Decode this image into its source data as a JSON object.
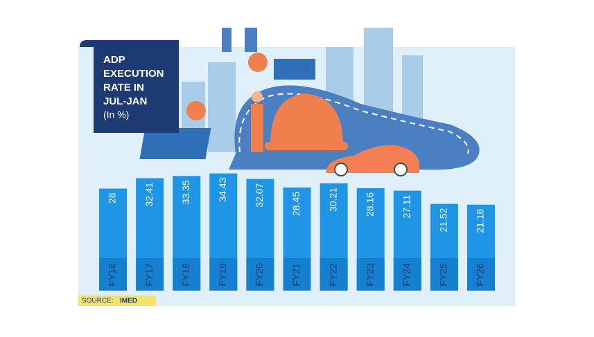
{
  "chart_data": {
    "type": "bar",
    "title_lines": [
      "ADP",
      "EXECUTION",
      "RATE IN",
      "JUL-JAN"
    ],
    "subtitle": "(In %)",
    "categories": [
      "FY16",
      "FY17",
      "FY18",
      "FY19",
      "FY20",
      "FY21",
      "FY22",
      "FY23",
      "FY24",
      "FY25",
      "FY26"
    ],
    "values": [
      28,
      32.41,
      33.35,
      34.43,
      32.07,
      28.45,
      30.21,
      28.16,
      27.11,
      21.52,
      21.18
    ],
    "color": "#1f95e6",
    "source_label": "SOURCE:",
    "source": "IMED"
  }
}
